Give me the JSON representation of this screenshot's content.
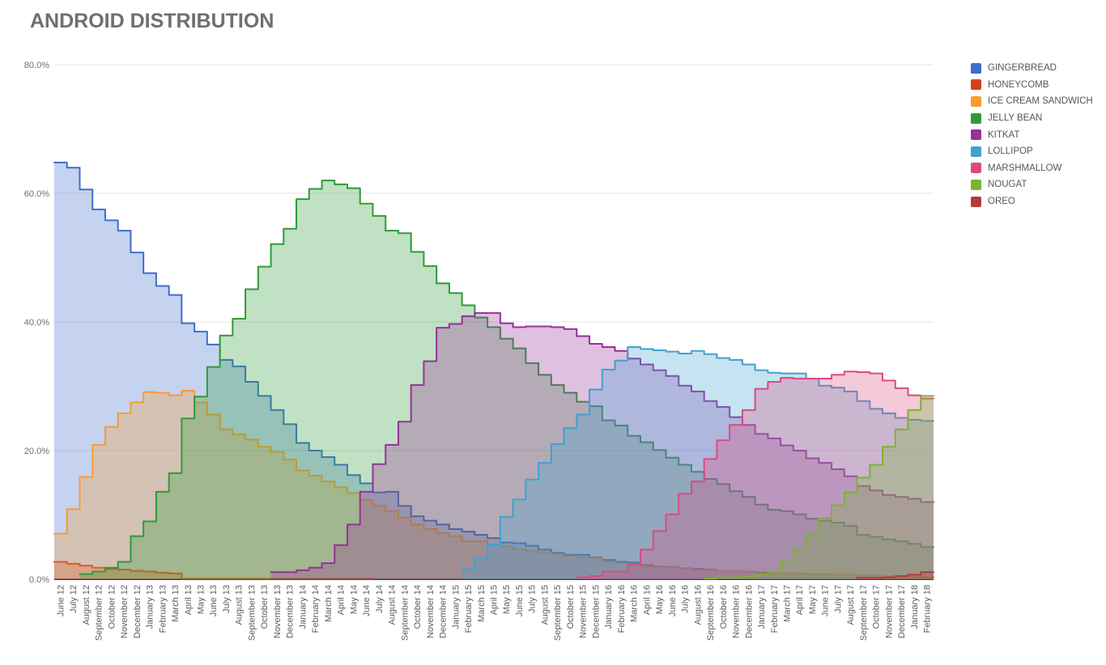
{
  "title": "ANDROID DISTRIBUTION",
  "legend": {
    "position": "right"
  },
  "chart_data": {
    "type": "area",
    "stepped": true,
    "stacked": false,
    "grid": "horizontal",
    "ylim": [
      0,
      80
    ],
    "yticks": [
      {
        "value": 0,
        "label": "0.0%"
      },
      {
        "value": 20,
        "label": "20.0%"
      },
      {
        "value": 40,
        "label": "40.0%"
      },
      {
        "value": 60,
        "label": "60.0%"
      },
      {
        "value": 80,
        "label": "80.0%"
      }
    ],
    "fill_opacity": 0.3,
    "x": [
      "June 12",
      "July 12",
      "August 12",
      "September 12",
      "October 12",
      "November 12",
      "December 12",
      "January 13",
      "February 13",
      "March 13",
      "April 13",
      "May 13",
      "June 13",
      "July 13",
      "August 13",
      "September 13",
      "October 13",
      "November 13",
      "December 13",
      "January 14",
      "February 14",
      "March 14",
      "April 14",
      "May 14",
      "June 14",
      "July 14",
      "August 14",
      "September 14",
      "October 14",
      "November 14",
      "December 14",
      "January 15",
      "February 15",
      "March 15",
      "April 15",
      "May 15",
      "June 15",
      "July 15",
      "August 15",
      "September 15",
      "October 15",
      "November 15",
      "December 15",
      "January 16",
      "February 16",
      "March 16",
      "April 16",
      "May 16",
      "June 16",
      "July 16",
      "August 16",
      "September 16",
      "October 16",
      "November 16",
      "December 16",
      "January 17",
      "February 17",
      "March 17",
      "April 17",
      "May 17",
      "June 17",
      "July 17",
      "August 17",
      "September 17",
      "October 17",
      "November 17",
      "December 17",
      "January 18",
      "February 18"
    ],
    "series": [
      {
        "name": "GINGERBREAD",
        "color": "#3E6DCD",
        "values": [
          64.8,
          64.0,
          60.6,
          57.5,
          55.8,
          54.2,
          50.8,
          47.6,
          45.6,
          44.2,
          39.8,
          38.5,
          36.5,
          34.1,
          33.1,
          30.7,
          28.5,
          26.3,
          24.1,
          21.2,
          20.0,
          19.0,
          17.8,
          16.2,
          14.9,
          13.5,
          13.6,
          11.4,
          9.8,
          9.1,
          8.5,
          7.8,
          7.4,
          6.9,
          6.4,
          5.7,
          5.6,
          5.2,
          4.6,
          4.1,
          3.8,
          3.8,
          3.4,
          3.0,
          2.7,
          2.6,
          2.2,
          2.0,
          1.9,
          1.7,
          1.6,
          1.5,
          1.3,
          1.3,
          1.2,
          1.0,
          1.0,
          1.0,
          0.9,
          0.8,
          0.8,
          0.7,
          0.7,
          0.6,
          0.6,
          0.5,
          0.4,
          0.4,
          0.3
        ]
      },
      {
        "name": "HONEYCOMB",
        "color": "#D2401E",
        "values": [
          2.7,
          2.4,
          2.1,
          1.8,
          1.6,
          1.5,
          1.3,
          1.2,
          1.0,
          0.9,
          0.1,
          0.1,
          0.1,
          0.1,
          0.1,
          0.1,
          0.1,
          0.1,
          0.1,
          0.1,
          0.1,
          0.1,
          0.1,
          0.1,
          0.1,
          null,
          null,
          null,
          null,
          null,
          null,
          null,
          null,
          null,
          null,
          null,
          null,
          null,
          null,
          null,
          null,
          null,
          null,
          null,
          null,
          null,
          null,
          null,
          null,
          null,
          null,
          null,
          null,
          null,
          null,
          null,
          null,
          null,
          null,
          null,
          null,
          null,
          null,
          null,
          null,
          null,
          null,
          null,
          null
        ]
      },
      {
        "name": "ICE CREAM SANDWICH",
        "color": "#F89C2F",
        "values": [
          7.1,
          10.9,
          15.9,
          20.9,
          23.7,
          25.8,
          27.5,
          29.1,
          29.0,
          28.6,
          29.3,
          27.5,
          25.6,
          23.3,
          22.5,
          21.7,
          20.6,
          19.8,
          18.6,
          16.9,
          16.1,
          15.2,
          14.3,
          13.4,
          12.3,
          11.4,
          10.6,
          9.6,
          8.5,
          7.8,
          7.2,
          6.7,
          5.9,
          5.9,
          5.3,
          5.1,
          4.7,
          4.4,
          4.1,
          3.9,
          3.6,
          3.4,
          3.3,
          2.7,
          2.5,
          2.3,
          2.0,
          1.9,
          1.8,
          1.6,
          1.4,
          1.4,
          1.3,
          1.3,
          1.2,
          1.1,
          1.0,
          1.0,
          0.9,
          0.8,
          0.8,
          0.7,
          0.7,
          0.6,
          0.6,
          0.5,
          0.5,
          0.4,
          0.4
        ]
      },
      {
        "name": "JELLY BEAN",
        "color": "#2F9B37",
        "values": [
          null,
          null,
          0.8,
          1.2,
          1.8,
          2.7,
          6.7,
          9.0,
          13.6,
          16.5,
          25.0,
          28.4,
          33.0,
          37.9,
          40.5,
          45.1,
          48.6,
          52.1,
          54.5,
          59.1,
          60.7,
          62.0,
          61.4,
          60.8,
          58.4,
          56.5,
          54.2,
          53.8,
          50.9,
          48.7,
          46.0,
          44.5,
          42.6,
          40.7,
          39.2,
          37.4,
          35.9,
          33.6,
          31.8,
          30.2,
          29.0,
          27.6,
          26.9,
          24.7,
          23.9,
          22.3,
          21.3,
          20.1,
          18.9,
          17.8,
          16.7,
          15.6,
          14.8,
          13.7,
          12.8,
          11.6,
          10.8,
          10.6,
          10.1,
          9.4,
          9.1,
          8.8,
          8.3,
          6.9,
          6.6,
          6.2,
          5.9,
          5.5,
          5.0
        ]
      },
      {
        "name": "KITKAT",
        "color": "#982F9B",
        "values": [
          null,
          null,
          null,
          null,
          null,
          null,
          null,
          null,
          null,
          null,
          null,
          null,
          null,
          null,
          null,
          null,
          null,
          1.1,
          1.1,
          1.4,
          1.8,
          2.5,
          5.3,
          8.5,
          13.6,
          17.9,
          20.9,
          24.5,
          30.2,
          33.9,
          39.1,
          39.7,
          40.9,
          41.4,
          41.4,
          39.8,
          39.2,
          39.3,
          39.3,
          39.2,
          38.9,
          37.8,
          36.6,
          36.1,
          35.5,
          34.3,
          33.4,
          32.5,
          31.6,
          30.1,
          29.2,
          27.7,
          26.8,
          25.2,
          24.0,
          22.6,
          21.9,
          20.8,
          20.0,
          18.8,
          18.1,
          17.1,
          16.0,
          14.5,
          13.8,
          13.1,
          12.8,
          12.5,
          12.0
        ]
      },
      {
        "name": "LOLLIPOP",
        "color": "#41A1CF",
        "values": [
          null,
          null,
          null,
          null,
          null,
          null,
          null,
          null,
          null,
          null,
          null,
          null,
          null,
          null,
          null,
          null,
          null,
          null,
          null,
          null,
          null,
          null,
          null,
          null,
          null,
          null,
          null,
          null,
          null,
          null,
          null,
          null,
          1.6,
          3.3,
          5.4,
          9.7,
          12.4,
          15.5,
          18.1,
          21.0,
          23.5,
          25.6,
          29.5,
          32.6,
          34.0,
          36.1,
          35.8,
          35.6,
          35.4,
          35.1,
          35.5,
          35.0,
          34.4,
          34.1,
          33.4,
          32.5,
          32.1,
          32.0,
          32.0,
          31.2,
          30.1,
          29.8,
          29.2,
          27.7,
          26.5,
          25.8,
          25.1,
          24.8,
          24.6
        ]
      },
      {
        "name": "MARSHMALLOW",
        "color": "#D94B80",
        "values": [
          null,
          null,
          null,
          null,
          null,
          null,
          null,
          null,
          null,
          null,
          null,
          null,
          null,
          null,
          null,
          null,
          null,
          null,
          null,
          null,
          null,
          null,
          null,
          null,
          null,
          null,
          null,
          null,
          null,
          null,
          null,
          null,
          null,
          null,
          null,
          null,
          null,
          null,
          null,
          null,
          null,
          0.3,
          0.5,
          1.2,
          1.2,
          2.3,
          4.6,
          7.5,
          10.1,
          13.3,
          15.2,
          18.7,
          21.6,
          24.0,
          26.3,
          29.6,
          30.7,
          31.3,
          31.2,
          31.2,
          31.2,
          31.8,
          32.3,
          32.2,
          32.0,
          30.9,
          29.7,
          28.6,
          28.1
        ]
      },
      {
        "name": "NOUGAT",
        "color": "#7BB335",
        "values": [
          null,
          null,
          null,
          null,
          null,
          null,
          null,
          null,
          null,
          null,
          null,
          null,
          null,
          null,
          null,
          null,
          null,
          null,
          null,
          null,
          null,
          null,
          null,
          null,
          null,
          null,
          null,
          null,
          null,
          null,
          null,
          null,
          null,
          null,
          null,
          null,
          null,
          null,
          null,
          null,
          null,
          null,
          null,
          null,
          null,
          null,
          null,
          null,
          null,
          null,
          null,
          0.1,
          0.3,
          0.3,
          0.4,
          0.7,
          1.2,
          2.8,
          4.9,
          7.1,
          9.5,
          11.5,
          13.5,
          15.8,
          17.8,
          20.6,
          23.3,
          26.3,
          28.5
        ]
      },
      {
        "name": "OREO",
        "color": "#B23B3B",
        "values": [
          null,
          null,
          null,
          null,
          null,
          null,
          null,
          null,
          null,
          null,
          null,
          null,
          null,
          null,
          null,
          null,
          null,
          null,
          null,
          null,
          null,
          null,
          null,
          null,
          null,
          null,
          null,
          null,
          null,
          null,
          null,
          null,
          null,
          null,
          null,
          null,
          null,
          null,
          null,
          null,
          null,
          null,
          null,
          null,
          null,
          null,
          null,
          null,
          null,
          null,
          null,
          null,
          null,
          null,
          null,
          null,
          null,
          null,
          null,
          null,
          null,
          null,
          null,
          0.2,
          0.2,
          0.3,
          0.5,
          0.7,
          1.1
        ]
      }
    ]
  }
}
